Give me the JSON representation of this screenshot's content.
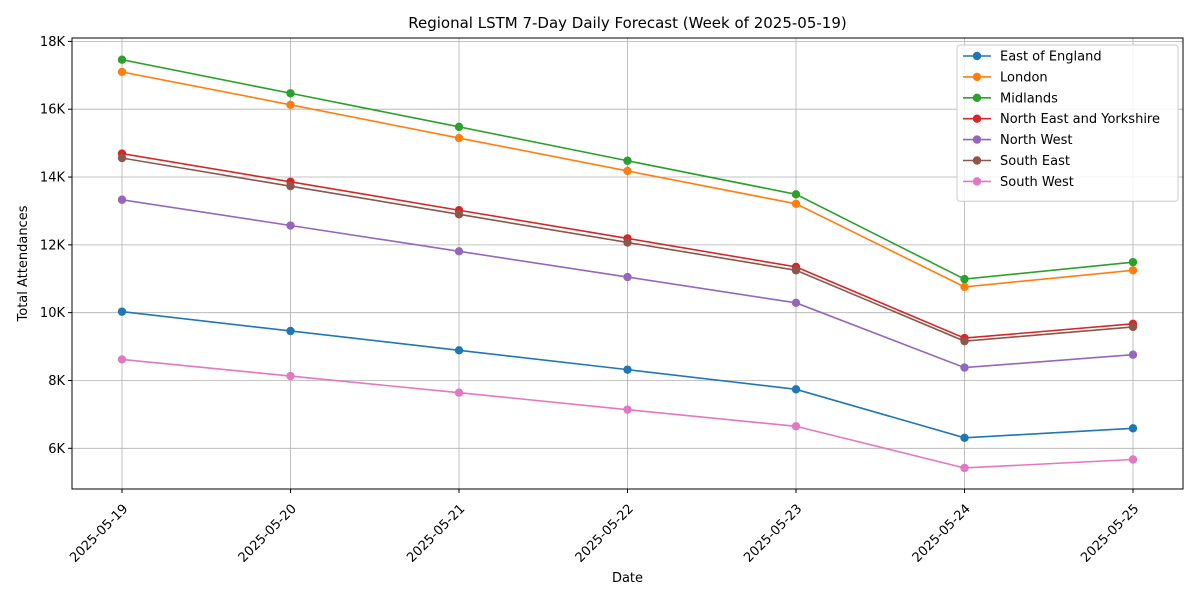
{
  "chart_data": {
    "type": "line",
    "title": "Regional LSTM 7-Day Daily Forecast (Week of 2025-05-19)",
    "xlabel": "Date",
    "ylabel": "Total Attendances",
    "x": [
      "2025-05-19",
      "2025-05-20",
      "2025-05-21",
      "2025-05-22",
      "2025-05-23",
      "2025-05-24",
      "2025-05-25"
    ],
    "ylim": [
      4800,
      18100
    ],
    "yticks": [
      6000,
      8000,
      10000,
      12000,
      14000,
      16000,
      18000
    ],
    "ytick_labels": [
      "6K",
      "8K",
      "10K",
      "12K",
      "14K",
      "16K",
      "18K"
    ],
    "grid": true,
    "legend_position": "top-right",
    "marker": "circle",
    "series": [
      {
        "name": "East of England",
        "color": "#1f77b4",
        "values": [
          10030,
          9460,
          8890,
          8320,
          7740,
          6310,
          6590
        ]
      },
      {
        "name": "London",
        "color": "#ff7f0e",
        "values": [
          17100,
          16130,
          15150,
          14180,
          13210,
          10760,
          11250
        ]
      },
      {
        "name": "Midlands",
        "color": "#2ca02c",
        "values": [
          17460,
          16470,
          15480,
          14480,
          13490,
          10990,
          11490
        ]
      },
      {
        "name": "North East and Yorkshire",
        "color": "#d62728",
        "values": [
          14690,
          13860,
          13020,
          12190,
          11350,
          9250,
          9670
        ]
      },
      {
        "name": "North West",
        "color": "#9467bd",
        "values": [
          13330,
          12570,
          11810,
          11050,
          10290,
          8380,
          8760
        ]
      },
      {
        "name": "South East",
        "color": "#8c564b",
        "values": [
          14560,
          13730,
          12900,
          12070,
          11250,
          9160,
          9580
        ]
      },
      {
        "name": "South West",
        "color": "#e377c2",
        "values": [
          8620,
          8130,
          7640,
          7140,
          6650,
          5420,
          5670
        ]
      }
    ]
  }
}
